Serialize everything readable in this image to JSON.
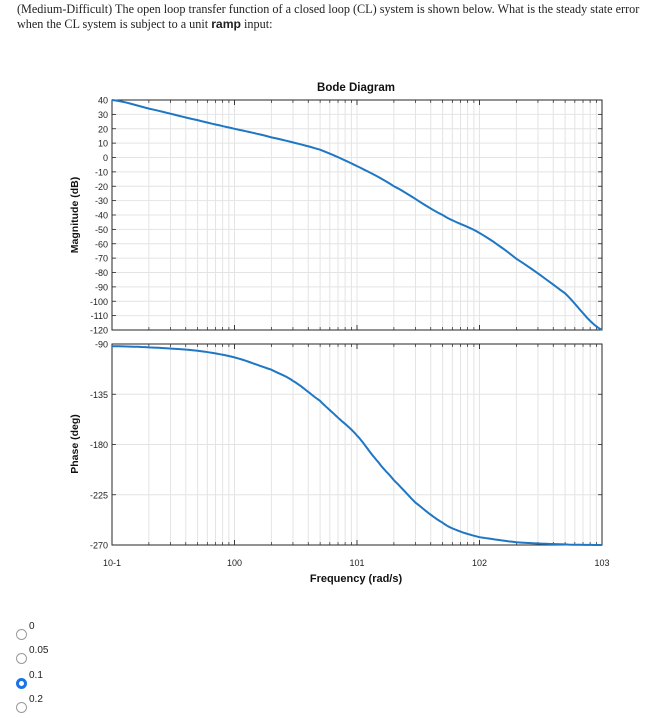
{
  "question": {
    "prefix": "(Medium-Difficult) The open loop transfer function of a closed loop (CL) system is shown below. What is the steady state error when the CL system is subject to a unit ",
    "keyword": "ramp",
    "suffix": " input:"
  },
  "options": [
    {
      "label": "0",
      "checked": false
    },
    {
      "label": "0.05",
      "checked": false
    },
    {
      "label": "0.1",
      "checked": true
    },
    {
      "label": "0.2",
      "checked": false
    }
  ],
  "colors": {
    "line": "#1f77c4",
    "grid": "#e4e4e4",
    "axis": "#262626",
    "radio_checked": "#1a73e8"
  },
  "chart_data": [
    {
      "type": "line",
      "title": "Bode Diagram",
      "xlabel": "Frequency (rad/s)",
      "ylabel": "Magnitude (dB)",
      "xscale": "log",
      "xlim": [
        0.1,
        1000
      ],
      "ylim": [
        -120,
        40
      ],
      "yticks": [
        "40",
        "30",
        "20",
        "10",
        "0",
        "-10",
        "-20",
        "-30",
        "-40",
        "-50",
        "-60",
        "-70",
        "-80",
        "-90",
        "-100",
        "-110",
        "-120"
      ],
      "grid": true,
      "series": [
        {
          "x": [
            0.1,
            0.2,
            0.5,
            1,
            2,
            5,
            10,
            20,
            50,
            100,
            200,
            500,
            1000
          ],
          "y": [
            40,
            34,
            26,
            20,
            14,
            5.4,
            -6,
            -20,
            -40,
            -52.5,
            -70.5,
            -94.5,
            -120
          ]
        }
      ]
    },
    {
      "type": "line",
      "xlabel": "Frequency (rad/s)",
      "ylabel": "Phase (deg)",
      "xscale": "log",
      "xlim": [
        0.1,
        1000
      ],
      "ylim": [
        -270,
        -90
      ],
      "yticks": [
        "-90",
        "-135",
        "-180",
        "-225",
        "-270"
      ],
      "xticks": [
        "10-1",
        "100",
        "101",
        "102",
        "103"
      ],
      "grid": true,
      "series": [
        {
          "x": [
            0.1,
            0.2,
            0.5,
            1,
            2,
            3,
            5,
            7,
            10,
            15,
            20,
            30,
            50,
            70,
            100,
            200,
            500,
            1000
          ],
          "y": [
            -92,
            -93,
            -96,
            -102,
            -113,
            -123,
            -141,
            -156,
            -172,
            -196,
            -212,
            -232,
            -250,
            -258,
            -263,
            -267.5,
            -269.5,
            -270
          ]
        }
      ]
    }
  ]
}
